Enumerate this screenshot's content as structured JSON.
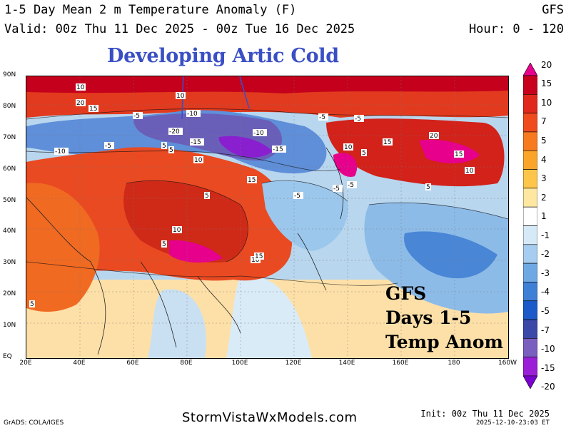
{
  "header": {
    "title_line1": "1-5 Day Mean 2 m Temperature Anomaly (F)",
    "title_line2": "Valid: 00z Thu 11 Dec 2025 - 00z Tue 16 Dec 2025",
    "model": "GFS",
    "hour_range": "Hour: 0 - 120"
  },
  "annotation": "Developing Artic Cold",
  "inset_text": [
    "GFS",
    "Days 1-5",
    "Temp Anom"
  ],
  "map": {
    "lat_labels": [
      "90N",
      "80N",
      "70N",
      "60N",
      "50N",
      "40N",
      "30N",
      "20N",
      "10N",
      "EQ"
    ],
    "lon_labels": [
      "20E",
      "40E",
      "60E",
      "80E",
      "100E",
      "120E",
      "140E",
      "160E",
      "180",
      "160W"
    ],
    "contour_labels": [
      "10",
      "20",
      "15",
      "10",
      "5",
      "-5",
      "-10",
      "-15",
      "-20",
      "-10",
      "-5",
      "5",
      "10",
      "15",
      "20",
      "15",
      "10",
      "5",
      "-5",
      "10",
      "15",
      "5",
      "-5",
      "-10",
      "-15",
      "5",
      "-5",
      "10",
      "5",
      "10",
      "15",
      "-5",
      "5",
      "-5"
    ],
    "colors": {
      "ocean_cool": "#c2d9ec",
      "land_warm": "#e94a22",
      "arctic_cold": "#6a5fb8"
    }
  },
  "colorbar": {
    "labels": [
      "20",
      "15",
      "10",
      "7",
      "5",
      "4",
      "3",
      "2",
      "1",
      "-1",
      "-2",
      "-3",
      "-4",
      "-5",
      "-7",
      "-10",
      "-15",
      "-20"
    ],
    "colors": [
      "#e6008c",
      "#c8001e",
      "#e0281c",
      "#f04b1e",
      "#f77a1f",
      "#fba42a",
      "#fdc64a",
      "#fee7a0",
      "#ffffff",
      "#d6e9f7",
      "#a6cdef",
      "#6fa9e4",
      "#3f80d7",
      "#1b5ac8",
      "#3a48a8",
      "#7a5fbf",
      "#9a1fd6",
      "#7a00d0"
    ]
  },
  "footer": {
    "grads": "GrADS: COLA/IGES",
    "website": "StormVistaWxModels.com",
    "init": "Init: 00z Thu 11 Dec 2025",
    "timestamp": "2025-12-10-23:03 ET"
  }
}
